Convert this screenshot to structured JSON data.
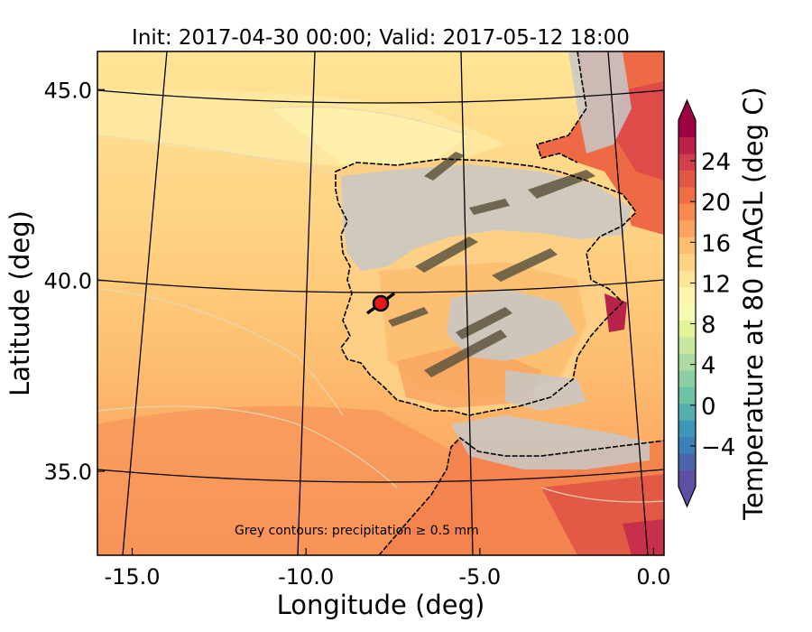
{
  "figure": {
    "title": "Init: 2017-04-30 00:00; Valid: 2017-05-12 18:00",
    "annotation": "Grey contours: precipitation  ≥ 0.5 mm",
    "colorbar_label": "Temperature at 80 mAGL (deg C)",
    "colormap": "Spectral_r",
    "colorbar_extend": "both"
  },
  "chart_data": {
    "type": "heatmap",
    "xlabel": "Longitude (deg)",
    "ylabel": "Latitude (deg)",
    "xlim": [
      -16,
      0.3
    ],
    "ylim": [
      32.8,
      46.0
    ],
    "x_ticks": [
      "-15.0",
      "-10.0",
      "-5.0",
      "0.0"
    ],
    "y_ticks": [
      "35.0",
      "40.0",
      "45.0"
    ],
    "x_tick_values": [
      -15,
      -10,
      -5,
      0
    ],
    "y_tick_values": [
      35,
      40,
      45
    ],
    "colorbar": {
      "ticks": [
        "−4",
        "0",
        "4",
        "8",
        "12",
        "16",
        "20",
        "24"
      ],
      "tick_values": [
        -4,
        0,
        4,
        8,
        12,
        16,
        20,
        24
      ],
      "range": [
        -8,
        28
      ],
      "colors": [
        "#5e4fa2",
        "#4b65ad",
        "#3d7fb7",
        "#3f96b7",
        "#54aead",
        "#6ec3a4",
        "#8dcfa4",
        "#acdca2",
        "#c7e89e",
        "#e2f299",
        "#f5fbb0",
        "#fef4ab",
        "#fee595",
        "#fed383",
        "#fdbe6f",
        "#fca45e",
        "#f88a51",
        "#f06e46",
        "#e25744",
        "#d13f4a",
        "#bb2149",
        "#9e0142"
      ]
    },
    "marker": {
      "lon": -7.6,
      "lat": 39.4,
      "color": "#e31a1c"
    }
  }
}
